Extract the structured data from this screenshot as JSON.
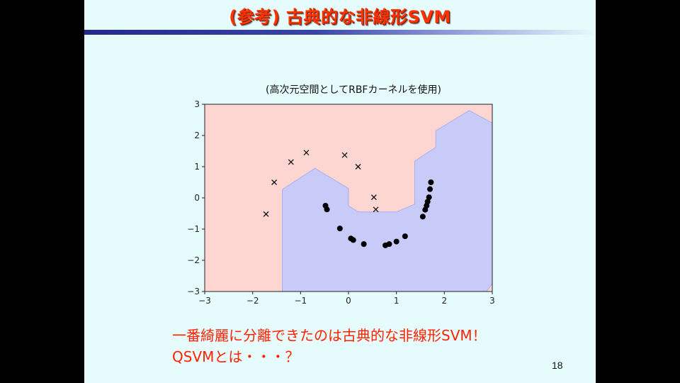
{
  "slide": {
    "title": "(参考) 古典的な非線形SVM",
    "chart_title": "(高次元空間としてRBFカーネルを使用)",
    "notes": [
      "一番綺麗に分離できたのは古典的な非線形SVM！",
      "QSVMとは・・・？"
    ],
    "page_number": "18",
    "colors": {
      "title": "#ff3300",
      "notes": "#ff2200",
      "region_class_x": "#fdd6d2",
      "region_class_dot": "#c8caf8",
      "slide_background": "#e6fbfc"
    }
  },
  "chart_data": {
    "type": "scatter",
    "title": "",
    "xlim": [
      -3,
      3
    ],
    "ylim": [
      -3,
      3
    ],
    "x_ticks": [
      "−3",
      "−2",
      "−1",
      "0",
      "1",
      "2",
      "3"
    ],
    "y_ticks": [
      "3",
      "2",
      "1",
      "0",
      "−1",
      "−2",
      "−3"
    ],
    "grid": false,
    "legend": "none",
    "series": [
      {
        "marker": "x",
        "points": [
          [
            -1.72,
            -0.52
          ],
          [
            -1.55,
            0.5
          ],
          [
            -1.2,
            1.15
          ],
          [
            -0.88,
            1.45
          ],
          [
            -0.08,
            1.37
          ],
          [
            0.2,
            1.0
          ],
          [
            0.53,
            0.02
          ],
          [
            0.57,
            -0.37
          ]
        ]
      },
      {
        "marker": "o",
        "points": [
          [
            -0.48,
            -0.25
          ],
          [
            -0.45,
            -0.37
          ],
          [
            -0.18,
            -0.98
          ],
          [
            0.05,
            -1.3
          ],
          [
            0.1,
            -1.35
          ],
          [
            0.32,
            -1.48
          ],
          [
            0.77,
            -1.52
          ],
          [
            0.85,
            -1.48
          ],
          [
            1.0,
            -1.4
          ],
          [
            1.18,
            -1.23
          ],
          [
            1.55,
            -0.6
          ],
          [
            1.6,
            -0.38
          ],
          [
            1.63,
            -0.25
          ],
          [
            1.65,
            -0.12
          ],
          [
            1.68,
            0.02
          ],
          [
            1.7,
            0.28
          ],
          [
            1.72,
            0.5
          ]
        ]
      }
    ],
    "decision_region_dot_boundary": [
      [
        -1.38,
        -3.0
      ],
      [
        -1.38,
        0.27
      ],
      [
        -0.7,
        0.95
      ],
      [
        0.0,
        0.3
      ],
      [
        0.0,
        -0.25
      ],
      [
        0.2,
        -0.45
      ],
      [
        1.0,
        -0.45
      ],
      [
        1.38,
        -0.2
      ],
      [
        1.38,
        1.18
      ],
      [
        1.82,
        1.62
      ],
      [
        1.82,
        2.15
      ],
      [
        2.52,
        2.8
      ],
      [
        3.0,
        2.4
      ],
      [
        3.0,
        -2.75
      ],
      [
        2.88,
        -3.0
      ]
    ]
  }
}
